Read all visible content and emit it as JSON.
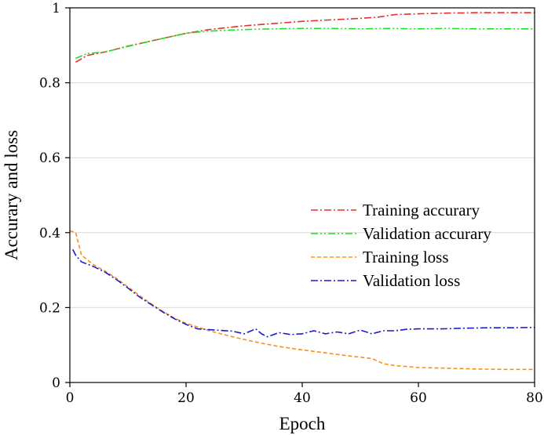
{
  "chart_data": {
    "type": "line",
    "xlabel": "Epoch",
    "ylabel": "Accurary and loss",
    "xlim": [
      0,
      80
    ],
    "ylim": [
      0,
      1
    ],
    "x_ticks": [
      0,
      20,
      40,
      60,
      80
    ],
    "y_ticks": [
      0,
      0.2,
      0.4,
      0.6,
      0.8,
      1
    ],
    "x_tick_labels": [
      "0",
      "20",
      "40",
      "60",
      "80"
    ],
    "y_tick_labels": [
      "0",
      "0.2",
      "0.4",
      "0.6",
      "0.8",
      "1"
    ],
    "grid": "horizontal",
    "legend_position": "center-right",
    "series": [
      {
        "name": "Training accurary",
        "color": "#e8302c",
        "dash": "dash-dot",
        "x": [
          1,
          3,
          6,
          10,
          15,
          20,
          24,
          30,
          35,
          40,
          45,
          50,
          53,
          56,
          60,
          65,
          70,
          75,
          80
        ],
        "values": [
          0.855,
          0.873,
          0.882,
          0.898,
          0.915,
          0.932,
          0.942,
          0.952,
          0.958,
          0.964,
          0.968,
          0.972,
          0.975,
          0.982,
          0.984,
          0.986,
          0.987,
          0.987,
          0.987
        ]
      },
      {
        "name": "Validation accurary",
        "color": "#22dd22",
        "dash": "dash-dot-dot",
        "x": [
          1,
          3,
          6,
          10,
          15,
          20,
          24,
          30,
          35,
          40,
          45,
          50,
          55,
          60,
          65,
          70,
          75,
          80
        ],
        "values": [
          0.865,
          0.878,
          0.882,
          0.897,
          0.915,
          0.932,
          0.938,
          0.942,
          0.944,
          0.945,
          0.945,
          0.944,
          0.945,
          0.944,
          0.945,
          0.944,
          0.944,
          0.944
        ]
      },
      {
        "name": "Training loss",
        "color": "#f5921e",
        "dash": "dash",
        "x": [
          0,
          1,
          2,
          4,
          6,
          8,
          10,
          12,
          14,
          16,
          18,
          20,
          24,
          28,
          32,
          36,
          40,
          44,
          48,
          52,
          54,
          56,
          60,
          65,
          70,
          75,
          80
        ],
        "values": [
          0.405,
          0.4,
          0.34,
          0.315,
          0.298,
          0.278,
          0.255,
          0.232,
          0.21,
          0.19,
          0.172,
          0.158,
          0.138,
          0.122,
          0.108,
          0.096,
          0.087,
          0.079,
          0.071,
          0.064,
          0.05,
          0.045,
          0.04,
          0.038,
          0.036,
          0.035,
          0.035
        ]
      },
      {
        "name": "Validation loss",
        "color": "#1c1ccc",
        "dash": "dash-dot",
        "x": [
          0.5,
          1,
          2,
          4,
          6,
          8,
          10,
          12,
          14,
          16,
          18,
          20,
          22,
          25,
          28,
          30,
          32,
          33,
          34,
          36,
          38,
          40,
          42,
          44,
          46,
          48,
          50,
          52,
          54,
          56,
          58,
          60,
          64,
          68,
          72,
          76,
          80
        ],
        "values": [
          0.355,
          0.34,
          0.322,
          0.31,
          0.295,
          0.275,
          0.252,
          0.228,
          0.208,
          0.188,
          0.17,
          0.155,
          0.143,
          0.14,
          0.137,
          0.13,
          0.143,
          0.13,
          0.122,
          0.133,
          0.128,
          0.13,
          0.138,
          0.13,
          0.135,
          0.13,
          0.14,
          0.13,
          0.138,
          0.138,
          0.142,
          0.143,
          0.143,
          0.145,
          0.146,
          0.146,
          0.147
        ]
      }
    ]
  }
}
